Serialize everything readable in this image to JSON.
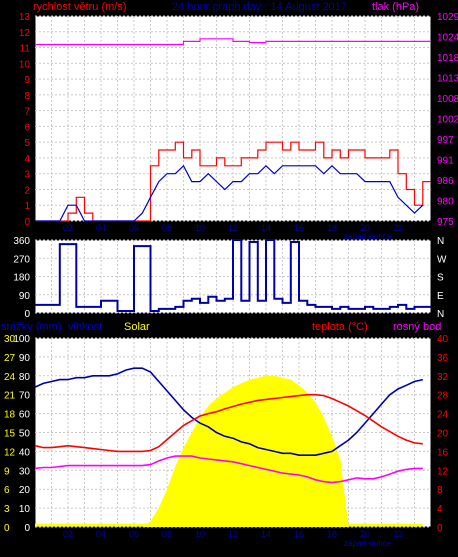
{
  "header": {
    "title": "24 hour graph day : 14 August 2017",
    "wind_label": "rychlost větru (m/s)",
    "pressure_label": "tlak (hPa)"
  },
  "chart_data": [
    {
      "id": "wind_pressure",
      "type": "line",
      "title": "24 hour graph day : 14 August 2017",
      "x": [
        0,
        0.5,
        1,
        1.5,
        2,
        2.5,
        3,
        3.5,
        4,
        4.5,
        5,
        5.5,
        6,
        6.5,
        7,
        7.5,
        8,
        8.5,
        9,
        9.5,
        10,
        10.5,
        11,
        11.5,
        12,
        12.5,
        13,
        13.5,
        14,
        14.5,
        15,
        15.5,
        16,
        16.5,
        17,
        17.5,
        18,
        18.5,
        19,
        19.5,
        20,
        20.5,
        21,
        21.5,
        22,
        22.5,
        23,
        23.5
      ],
      "xlim": [
        0,
        24
      ],
      "x_ticks": [
        "02",
        "04",
        "06",
        "08",
        "10",
        "12",
        "14",
        "16",
        "18",
        "20",
        "22"
      ],
      "x_tick_values": [
        2,
        4,
        6,
        8,
        10,
        12,
        14,
        16,
        18,
        20,
        22
      ],
      "annotation": "západ slunce",
      "left_axis": {
        "label": "rychlost větru (m/s)",
        "range": [
          0,
          13
        ],
        "ticks": [
          0,
          1,
          2,
          3,
          4,
          5,
          6,
          7,
          8,
          9,
          10,
          11,
          12,
          13
        ]
      },
      "right_axis": {
        "label": "tlak (hPa)",
        "range": [
          975,
          1029
        ],
        "ticks": [
          975,
          980,
          986,
          991,
          997,
          1002,
          1008,
          1013,
          1018,
          1024,
          1029
        ]
      },
      "series": [
        {
          "color": "#ff0000",
          "axis": "left",
          "style": "step",
          "values": [
            0,
            0,
            0,
            0,
            0.5,
            1.5,
            0.5,
            0,
            0,
            0,
            0,
            0,
            0,
            0,
            3.5,
            4.5,
            4.5,
            5,
            4,
            4.5,
            3.5,
            3.5,
            4,
            3.5,
            3.5,
            4,
            4,
            4.5,
            5,
            5,
            4.5,
            5,
            4.5,
            4.5,
            5,
            4,
            4.5,
            4,
            4.5,
            4.5,
            4,
            4,
            4,
            4.5,
            3,
            2,
            1,
            2.5
          ]
        },
        {
          "color": "#0000cc",
          "axis": "left",
          "style": "line",
          "values": [
            0,
            0,
            0,
            0,
            1,
            1,
            0,
            0,
            0,
            0,
            0,
            0,
            0,
            0.5,
            1.5,
            2.5,
            3,
            3,
            3.5,
            2.5,
            2.5,
            3,
            2.5,
            2,
            2.5,
            2.5,
            3,
            3,
            3.5,
            3,
            3.5,
            3.5,
            3.5,
            3.5,
            3.5,
            3,
            3.5,
            3,
            3,
            3,
            2.5,
            2.5,
            2.5,
            2.5,
            1.5,
            1,
            0.5,
            1
          ]
        },
        {
          "color": "#ff00ff",
          "axis": "right",
          "style": "step",
          "values": [
            1021.5,
            1021.5,
            1021.5,
            1021.5,
            1021.5,
            1021.5,
            1021.5,
            1021.5,
            1021.5,
            1021.5,
            1021.5,
            1021.5,
            1021.5,
            1021.5,
            1021.5,
            1021.5,
            1021.5,
            1021.5,
            1022.3,
            1022.3,
            1023,
            1023,
            1023,
            1023,
            1022.3,
            1022.3,
            1022,
            1022,
            1022.3,
            1022.3,
            1022.3,
            1022.3,
            1022.3,
            1022.3,
            1022.3,
            1022.3,
            1022.3,
            1022.3,
            1022.3,
            1022.3,
            1022.3,
            1022.3,
            1022.3,
            1022.3,
            1022.3,
            1022.3,
            1022.3,
            1022.3
          ]
        }
      ]
    },
    {
      "id": "wind_direction",
      "type": "line",
      "x": [
        0,
        0.5,
        1,
        1.5,
        2,
        2.5,
        3,
        3.5,
        4,
        4.5,
        5,
        5.5,
        6,
        6.5,
        7,
        7.5,
        8,
        8.5,
        9,
        9.5,
        10,
        10.5,
        11,
        11.5,
        12,
        12.5,
        13,
        13.5,
        14,
        14.5,
        15,
        15.5,
        16,
        16.5,
        17,
        17.5,
        18,
        18.5,
        19,
        19.5,
        20,
        20.5,
        21,
        21.5,
        22,
        22.5,
        23,
        23.5
      ],
      "xlim": [
        0,
        24
      ],
      "left_axis": {
        "range": [
          0,
          360
        ],
        "ticks": [
          0,
          90,
          180,
          270,
          360
        ]
      },
      "right_axis": {
        "ticks": [
          "N",
          "W",
          "S",
          "E",
          "N"
        ]
      },
      "series": [
        {
          "color": "#0000aa",
          "style": "step",
          "values": [
            40,
            40,
            40,
            340,
            340,
            30,
            30,
            30,
            60,
            60,
            10,
            10,
            330,
            330,
            10,
            20,
            20,
            30,
            60,
            70,
            50,
            80,
            60,
            70,
            360,
            60,
            350,
            60,
            360,
            70,
            50,
            350,
            60,
            40,
            30,
            30,
            20,
            30,
            20,
            20,
            30,
            20,
            20,
            30,
            40,
            20,
            30,
            30
          ]
        }
      ]
    },
    {
      "id": "humidity_temperature",
      "type": "line",
      "x": [
        0,
        0.5,
        1,
        1.5,
        2,
        2.5,
        3,
        3.5,
        4,
        4.5,
        5,
        5.5,
        6,
        6.5,
        7,
        7.5,
        8,
        8.5,
        9,
        9.5,
        10,
        10.5,
        11,
        11.5,
        12,
        12.5,
        13,
        13.5,
        14,
        14.5,
        15,
        15.5,
        16,
        16.5,
        17,
        17.5,
        18,
        18.5,
        19,
        19.5,
        20,
        20.5,
        21,
        21.5,
        22,
        22.5,
        23,
        23.5
      ],
      "xlim": [
        0,
        24
      ],
      "x_ticks": [
        "02",
        "04",
        "06",
        "08",
        "10",
        "12",
        "14",
        "16",
        "18",
        "20",
        "22"
      ],
      "x_tick_values": [
        2,
        4,
        6,
        8,
        10,
        12,
        14,
        16,
        18,
        20,
        22
      ],
      "annotation": "západ slunce",
      "header_labels": {
        "rain": "srážky (mm)",
        "humidity": "vlhkost",
        "solar": "Solar",
        "temperature": "teplota (°C)",
        "dewpoint": "rosný bod"
      },
      "left_axis": {
        "range": [
          0,
          100
        ],
        "ticks": [
          0,
          10,
          20,
          30,
          40,
          50,
          60,
          70,
          80,
          90,
          100
        ]
      },
      "rain_axis": {
        "range": [
          0,
          30
        ],
        "ticks": [
          0,
          3,
          6,
          9,
          12,
          15,
          18,
          21,
          24,
          27,
          30
        ]
      },
      "right_axis": {
        "range": [
          0,
          40
        ],
        "ticks": [
          0,
          4,
          8,
          12,
          16,
          20,
          24,
          28,
          32,
          36,
          40
        ]
      },
      "series": [
        {
          "color": "#ffff00",
          "axis": "left",
          "style": "area",
          "values": [
            0,
            0,
            0,
            0,
            0,
            0,
            0,
            0,
            0,
            0,
            0,
            0,
            0,
            0,
            3,
            10,
            20,
            32,
            42,
            50,
            58,
            64,
            68,
            71,
            74,
            76,
            78,
            79,
            80,
            80,
            79,
            78,
            75,
            71,
            66,
            58,
            48,
            36,
            0,
            0,
            0,
            0,
            0,
            0,
            0,
            0,
            0,
            0
          ]
        },
        {
          "color": "#0000aa",
          "axis": "left",
          "style": "line",
          "values": [
            74,
            76,
            77,
            78,
            78,
            79,
            79,
            80,
            80,
            80,
            81,
            83,
            84,
            84,
            82,
            77,
            72,
            67,
            62,
            58,
            55,
            53,
            50,
            48,
            47,
            45,
            44,
            42,
            41,
            40,
            39,
            39,
            38,
            38,
            38,
            39,
            40,
            43,
            46,
            50,
            55,
            60,
            65,
            70,
            73,
            75,
            77,
            78
          ]
        },
        {
          "color": "#ff0000",
          "axis": "right",
          "style": "line",
          "values": [
            17.2,
            16.8,
            16.8,
            17,
            17.2,
            17,
            16.8,
            16.6,
            16.4,
            16.2,
            16,
            16,
            16,
            16,
            16.2,
            17,
            18.5,
            20,
            21.5,
            22.5,
            23.5,
            24,
            24.4,
            25,
            25.5,
            26,
            26.4,
            26.8,
            27,
            27.2,
            27.4,
            27.6,
            27.8,
            28,
            28,
            27.8,
            27.2,
            26.4,
            25.6,
            24.6,
            23.6,
            22.4,
            21.2,
            20.2,
            19.2,
            18.4,
            17.8,
            17.6
          ]
        },
        {
          "color": "#ff00ff",
          "axis": "right",
          "style": "line",
          "values": [
            12.4,
            12.6,
            12.6,
            12.8,
            13,
            13,
            13,
            13,
            13,
            13,
            13,
            13,
            13,
            13,
            13.2,
            14,
            14.6,
            15,
            15,
            15,
            14.6,
            14.4,
            14.2,
            14,
            13.8,
            13.4,
            13,
            12.6,
            12.2,
            11.8,
            11.4,
            11.2,
            11,
            10.6,
            10,
            9.6,
            9.4,
            9.6,
            10,
            10.4,
            10.2,
            10.2,
            10.6,
            11.2,
            11.8,
            12.2,
            12.4,
            12.4
          ]
        },
        {
          "color": "#ffff00",
          "axis": "rain",
          "style": "line",
          "values": [
            0.3,
            0.3,
            0.3,
            0.3,
            0.3,
            0.3,
            0.3,
            0.3,
            0.3,
            0.3,
            0.3,
            0.3,
            0.3,
            0.3,
            0.3,
            0.3,
            0.3,
            0.3,
            0.3,
            0.3,
            0.3,
            0.3,
            0.3,
            0.3,
            0.3,
            0.3,
            0.3,
            0.3,
            0.3,
            0.3,
            0.3,
            0.3,
            0.3,
            0.3,
            0.3,
            0.3,
            0.3,
            0.3,
            0.3,
            0.3,
            0.3,
            0.3,
            0.3,
            0.3,
            0.3,
            0.3,
            0.3,
            0.3
          ]
        }
      ]
    }
  ]
}
